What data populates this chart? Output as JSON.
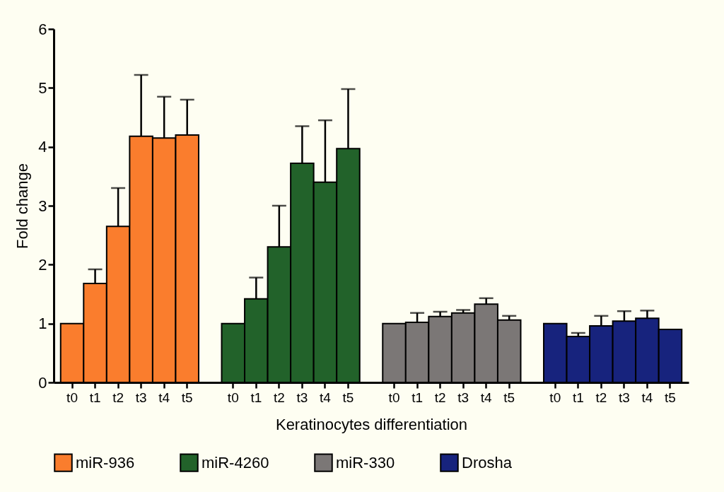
{
  "chart_data": {
    "type": "bar",
    "xlabel": "Keratinocytes differentiation",
    "ylabel": "Fold change",
    "categories": [
      "t0",
      "t1",
      "t2",
      "t3",
      "t4",
      "t5",
      "t0",
      "t1",
      "t2",
      "t3",
      "t4",
      "t5",
      "t0",
      "t1",
      "t2",
      "t3",
      "t4",
      "t5",
      "t0",
      "t1",
      "t2",
      "t3",
      "t4",
      "t5"
    ],
    "ylim": [
      0,
      6
    ],
    "yticks": [
      0,
      1,
      2,
      3,
      4,
      5,
      6
    ],
    "grid": false,
    "legend": "bottom",
    "series": [
      {
        "name": "miR-936",
        "color": "#fa7d2d",
        "values": [
          1.0,
          1.68,
          2.65,
          4.18,
          4.15,
          4.2,
          null,
          null,
          null,
          null,
          null,
          null,
          null,
          null,
          null,
          null,
          null,
          null,
          null,
          null,
          null,
          null,
          null,
          null
        ],
        "errors": [
          null,
          [
            1.68,
            1.92
          ],
          [
            2.65,
            3.3
          ],
          [
            4.18,
            5.22
          ],
          [
            4.15,
            4.85
          ],
          [
            4.2,
            4.8
          ],
          null,
          null,
          null,
          null,
          null,
          null,
          null,
          null,
          null,
          null,
          null,
          null,
          null,
          null,
          null,
          null,
          null,
          null
        ]
      },
      {
        "name": "miR-4260",
        "color": "#22622a",
        "values": [
          null,
          null,
          null,
          null,
          null,
          null,
          1.0,
          1.42,
          2.3,
          3.72,
          3.4,
          3.97,
          null,
          null,
          null,
          null,
          null,
          null,
          null,
          null,
          null,
          null,
          null,
          null
        ],
        "errors": [
          null,
          null,
          null,
          null,
          null,
          null,
          null,
          [
            1.42,
            1.78
          ],
          [
            2.3,
            3.0
          ],
          [
            3.72,
            4.35
          ],
          [
            3.4,
            4.45
          ],
          [
            3.97,
            4.98
          ],
          null,
          null,
          null,
          null,
          null,
          null,
          null,
          null,
          null,
          null,
          null,
          null
        ]
      },
      {
        "name": "miR-330",
        "color": "#7b7776",
        "values": [
          null,
          null,
          null,
          null,
          null,
          null,
          null,
          null,
          null,
          null,
          null,
          null,
          1.0,
          1.02,
          1.12,
          1.18,
          1.33,
          1.06,
          null,
          null,
          null,
          null,
          null,
          null
        ],
        "errors": [
          null,
          null,
          null,
          null,
          null,
          null,
          null,
          null,
          null,
          null,
          null,
          null,
          null,
          [
            1.02,
            1.18
          ],
          [
            1.12,
            1.2
          ],
          [
            1.18,
            1.23
          ],
          [
            1.33,
            1.43
          ],
          [
            1.06,
            1.13
          ],
          null,
          null,
          null,
          null,
          null,
          null
        ]
      },
      {
        "name": "Drosha",
        "color": "#17237d",
        "values": [
          null,
          null,
          null,
          null,
          null,
          null,
          null,
          null,
          null,
          null,
          null,
          null,
          null,
          null,
          null,
          null,
          null,
          null,
          1.0,
          0.78,
          0.96,
          1.04,
          1.09,
          0.9
        ],
        "errors": [
          null,
          null,
          null,
          null,
          null,
          null,
          null,
          null,
          null,
          null,
          null,
          null,
          null,
          null,
          null,
          null,
          null,
          null,
          null,
          [
            0.78,
            0.84
          ],
          [
            0.96,
            1.13
          ],
          [
            1.04,
            1.21
          ],
          [
            1.09,
            1.22
          ],
          null
        ]
      }
    ]
  }
}
